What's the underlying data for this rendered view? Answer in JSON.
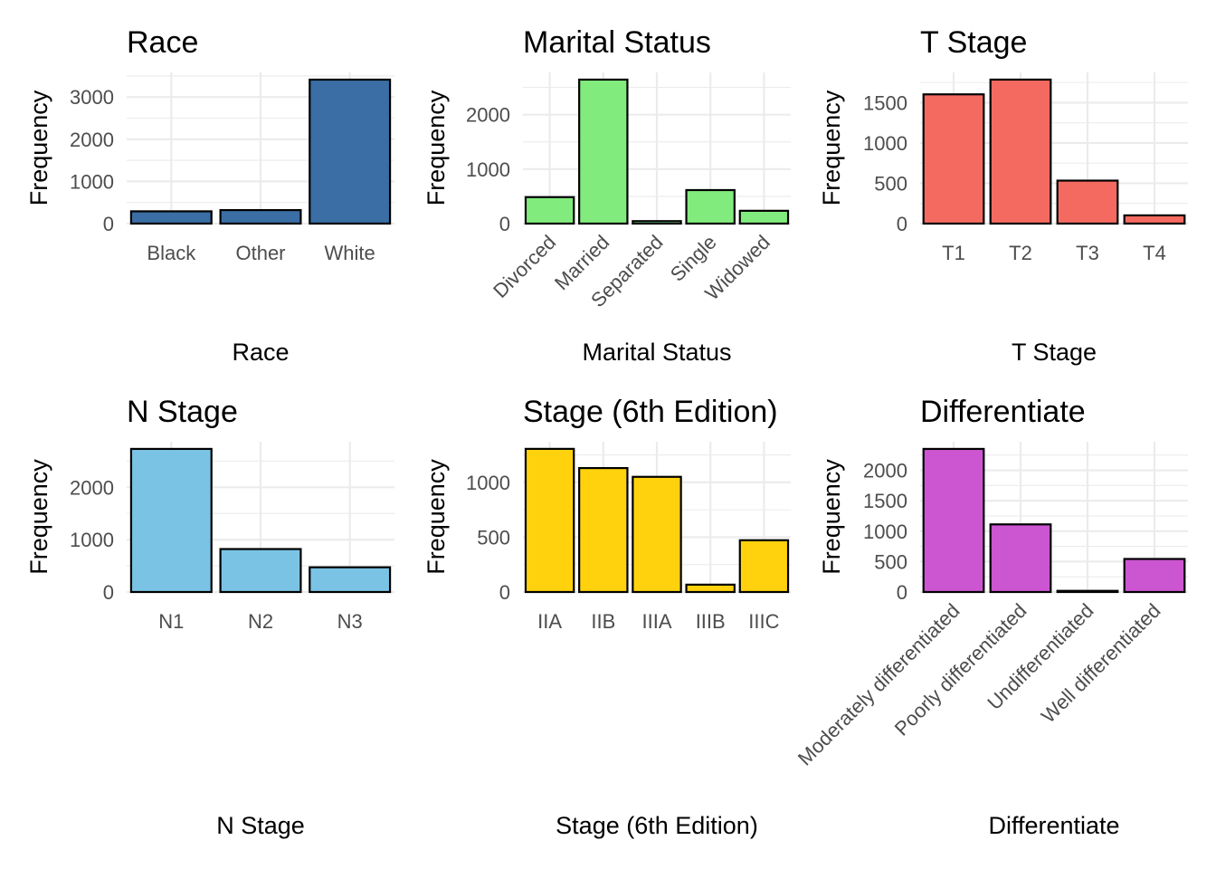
{
  "chart_data": [
    {
      "type": "bar",
      "title": "Race",
      "xlabel": "Race",
      "ylabel": "Frequency",
      "fill": "#3A6EA5",
      "categories": [
        "Black",
        "Other",
        "White"
      ],
      "values": [
        291,
        320,
        3413
      ],
      "ylim": [
        0,
        3584
      ],
      "yticks": [
        0,
        1000,
        2000,
        3000
      ],
      "ytick_labels": [
        "0",
        "1000",
        "2000",
        "3000"
      ],
      "xtick_rotation": 0,
      "grid": true,
      "legend": "none"
    },
    {
      "type": "bar",
      "title": "Marital Status",
      "xlabel": "Marital Status",
      "ylabel": "Frequency",
      "fill": "#82EB7D",
      "categories": [
        "Divorced",
        "Married",
        "Separated",
        "Single",
        "Widowed"
      ],
      "values": [
        486,
        2643,
        45,
        615,
        235
      ],
      "ylim": [
        0,
        2775
      ],
      "yticks": [
        0,
        1000,
        2000
      ],
      "ytick_labels": [
        "0",
        "1000",
        "2000"
      ],
      "xtick_rotation": -45,
      "grid": true,
      "legend": "none"
    },
    {
      "type": "bar",
      "title": "T Stage",
      "xlabel": "T Stage",
      "ylabel": "Frequency",
      "fill": "#F46A60",
      "categories": [
        "T1",
        "T2",
        "T3",
        "T4"
      ],
      "values": [
        1603,
        1786,
        533,
        102
      ],
      "ylim": [
        0,
        1875
      ],
      "yticks": [
        0,
        500,
        1000,
        1500
      ],
      "ytick_labels": [
        "0",
        "500",
        "1000",
        "1500"
      ],
      "xtick_rotation": 0,
      "grid": true,
      "legend": "none"
    },
    {
      "type": "bar",
      "title": "N Stage",
      "xlabel": "N Stage",
      "ylabel": "Frequency",
      "fill": "#7AC3E5",
      "categories": [
        "N1",
        "N2",
        "N3"
      ],
      "values": [
        2732,
        820,
        472
      ],
      "ylim": [
        0,
        2869
      ],
      "yticks": [
        0,
        1000,
        2000
      ],
      "ytick_labels": [
        "0",
        "1000",
        "2000"
      ],
      "xtick_rotation": 0,
      "grid": true,
      "legend": "none"
    },
    {
      "type": "bar",
      "title": "Stage (6th Edition)",
      "xlabel": "Stage (6th Edition)",
      "ylabel": "Frequency",
      "fill": "#FFD20D",
      "categories": [
        "IIA",
        "IIB",
        "IIIA",
        "IIIB",
        "IIIC"
      ],
      "values": [
        1305,
        1130,
        1050,
        67,
        472
      ],
      "ylim": [
        0,
        1370
      ],
      "yticks": [
        0,
        500,
        1000
      ],
      "ytick_labels": [
        "0",
        "500",
        "1000"
      ],
      "xtick_rotation": 0,
      "grid": true,
      "legend": "none"
    },
    {
      "type": "bar",
      "title": "Differentiate",
      "xlabel": "Differentiate",
      "ylabel": "Frequency",
      "fill": "#CC55D1",
      "categories": [
        "Moderately differentiated",
        "Poorly differentiated",
        "Undifferentiated",
        "Well differentiated"
      ],
      "values": [
        2351,
        1111,
        19,
        543
      ],
      "ylim": [
        0,
        2469
      ],
      "yticks": [
        0,
        500,
        1000,
        1500,
        2000
      ],
      "ytick_labels": [
        "0",
        "500",
        "1000",
        "1500",
        "2000"
      ],
      "xtick_rotation": -45,
      "grid": true,
      "legend": "none"
    }
  ]
}
